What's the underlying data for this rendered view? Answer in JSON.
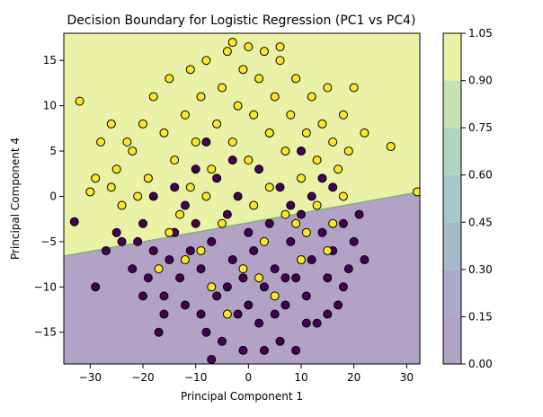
{
  "chart_data": {
    "type": "scatter",
    "title": "Decision Boundary for Logistic Regression (PC1 vs PC4)",
    "xlabel": "Principal Component 1",
    "ylabel": "Principal Component 4",
    "xlim": [
      -35,
      32.5
    ],
    "ylim": [
      -18.5,
      18
    ],
    "x_ticks": [
      -30,
      -20,
      -10,
      0,
      10,
      20,
      30
    ],
    "y_ticks": [
      -15,
      -10,
      -5,
      0,
      5,
      10,
      15
    ],
    "x_tick_labels": [
      "−30",
      "−20",
      "−10",
      "0",
      "10",
      "20",
      "30"
    ],
    "y_tick_labels": [
      "−15",
      "−10",
      "−5",
      "0",
      "5",
      "10",
      "15"
    ],
    "grid": false,
    "decision_boundary": {
      "x": [
        -35,
        32.5
      ],
      "y": [
        -6.6,
        0.5
      ]
    },
    "colorbar": {
      "ticks": [
        0.0,
        0.15,
        0.3,
        0.45,
        0.6,
        0.75,
        0.9,
        1.05
      ],
      "tick_labels": [
        "0.00",
        "0.15",
        "0.30",
        "0.45",
        "0.60",
        "0.75",
        "0.90",
        "1.05"
      ],
      "colors": [
        "#b2a2c5",
        "#a9abc8",
        "#a5bac9",
        "#a5c8c8",
        "#b0d6bf",
        "#c8e1b2",
        "#eaf2a8"
      ]
    },
    "colors": {
      "class_0_region": "#b2a2c5",
      "class_1_region": "#eaf2a8",
      "boundary": "#7fb07f",
      "class_0_point": "#440154",
      "class_1_point": "#fde725",
      "edge": "#000000"
    },
    "series": [
      {
        "class": 0,
        "points": [
          [
            -33,
            -2.8
          ],
          [
            -29,
            -10
          ],
          [
            -25,
            -4
          ],
          [
            -22,
            -8
          ],
          [
            -21,
            -5
          ],
          [
            -20,
            -3
          ],
          [
            -19,
            -9
          ],
          [
            -18,
            -6
          ],
          [
            -17,
            -15
          ],
          [
            -16,
            -11
          ],
          [
            -15,
            -7
          ],
          [
            -14,
            -4
          ],
          [
            -13,
            -9
          ],
          [
            -12,
            -12
          ],
          [
            -11,
            -6
          ],
          [
            -10,
            -3
          ],
          [
            -9,
            -8
          ],
          [
            -8,
            -15
          ],
          [
            -7,
            -5
          ],
          [
            -6,
            -11
          ],
          [
            -5,
            -16
          ],
          [
            -4,
            -2
          ],
          [
            -3,
            -7
          ],
          [
            -2,
            -13
          ],
          [
            -1,
            -9
          ],
          [
            0,
            -4
          ],
          [
            1,
            -6
          ],
          [
            2,
            -14
          ],
          [
            3,
            -10
          ],
          [
            4,
            -3
          ],
          [
            5,
            -8
          ],
          [
            6,
            -16
          ],
          [
            7,
            -12
          ],
          [
            8,
            -5
          ],
          [
            9,
            -9
          ],
          [
            10,
            -2
          ],
          [
            11,
            -11
          ],
          [
            12,
            -7
          ],
          [
            13,
            -14
          ],
          [
            14,
            -4
          ],
          [
            15,
            -9
          ],
          [
            16,
            -6
          ],
          [
            17,
            -12
          ],
          [
            18,
            -3
          ],
          [
            19,
            -8
          ],
          [
            20,
            -5
          ],
          [
            21,
            -2
          ],
          [
            22,
            -7
          ],
          [
            -6,
            2
          ],
          [
            -3,
            4
          ],
          [
            2,
            3
          ],
          [
            6,
            1
          ],
          [
            10,
            5
          ],
          [
            -10,
            3
          ],
          [
            -14,
            1
          ],
          [
            14,
            2
          ],
          [
            -8,
            6
          ],
          [
            4,
            7
          ],
          [
            -2,
            0
          ],
          [
            8,
            -1
          ],
          [
            -12,
            -1
          ],
          [
            12,
            0
          ],
          [
            -18,
            0
          ],
          [
            16,
            1
          ],
          [
            -24,
            -5
          ],
          [
            -27,
            -6
          ],
          [
            -1,
            -17
          ],
          [
            3,
            -17
          ],
          [
            -7,
            -18
          ],
          [
            9,
            -17
          ],
          [
            -16,
            -13
          ],
          [
            15,
            -13
          ],
          [
            18,
            -10
          ],
          [
            -20,
            -11
          ],
          [
            -9,
            -13
          ],
          [
            0,
            -12
          ],
          [
            5,
            -13
          ],
          [
            11,
            -14
          ],
          [
            -4,
            -10
          ],
          [
            7,
            -9
          ]
        ]
      },
      {
        "class": 1,
        "points": [
          [
            -32,
            10.5
          ],
          [
            -30,
            0.5
          ],
          [
            -28,
            6
          ],
          [
            -26,
            8
          ],
          [
            -25,
            3
          ],
          [
            -24,
            -1
          ],
          [
            -22,
            5
          ],
          [
            -20,
            8
          ],
          [
            -19,
            2
          ],
          [
            -18,
            11
          ],
          [
            -16,
            7
          ],
          [
            -15,
            13
          ],
          [
            -14,
            4
          ],
          [
            -12,
            9
          ],
          [
            -11,
            14
          ],
          [
            -10,
            6
          ],
          [
            -9,
            11
          ],
          [
            -8,
            15
          ],
          [
            -7,
            3
          ],
          [
            -6,
            8
          ],
          [
            -5,
            12
          ],
          [
            -4,
            16
          ],
          [
            -3,
            6
          ],
          [
            -2,
            10
          ],
          [
            -1,
            14
          ],
          [
            0,
            4
          ],
          [
            1,
            9
          ],
          [
            2,
            13
          ],
          [
            3,
            16
          ],
          [
            4,
            7
          ],
          [
            5,
            11
          ],
          [
            6,
            15
          ],
          [
            7,
            5
          ],
          [
            8,
            9
          ],
          [
            9,
            13
          ],
          [
            10,
            2
          ],
          [
            11,
            7
          ],
          [
            12,
            11
          ],
          [
            13,
            4
          ],
          [
            14,
            8
          ],
          [
            15,
            12
          ],
          [
            16,
            6
          ],
          [
            17,
            3
          ],
          [
            18,
            9
          ],
          [
            19,
            5
          ],
          [
            20,
            12
          ],
          [
            22,
            7
          ],
          [
            27,
            5.5
          ],
          [
            32,
            0.5
          ],
          [
            -13,
            -2
          ],
          [
            -9,
            -6
          ],
          [
            -5,
            -3
          ],
          [
            -1,
            -8
          ],
          [
            3,
            -5
          ],
          [
            7,
            -2
          ],
          [
            11,
            -4
          ],
          [
            15,
            -6
          ],
          [
            -17,
            -8
          ],
          [
            -7,
            -10
          ],
          [
            5,
            -11
          ],
          [
            13,
            -1
          ],
          [
            -21,
            0
          ],
          [
            -11,
            1
          ],
          [
            1,
            -1
          ],
          [
            9,
            -3
          ],
          [
            -3,
            17
          ],
          [
            0,
            16.5
          ],
          [
            6,
            16.5
          ],
          [
            -26,
            1
          ],
          [
            -23,
            6
          ],
          [
            -29,
            2
          ],
          [
            -8,
            0
          ],
          [
            4,
            1
          ],
          [
            18,
            0
          ],
          [
            -15,
            -4
          ],
          [
            10,
            -7
          ],
          [
            -4,
            -13
          ],
          [
            2,
            -9
          ],
          [
            16,
            -3
          ],
          [
            -12,
            -7
          ]
        ]
      }
    ]
  }
}
